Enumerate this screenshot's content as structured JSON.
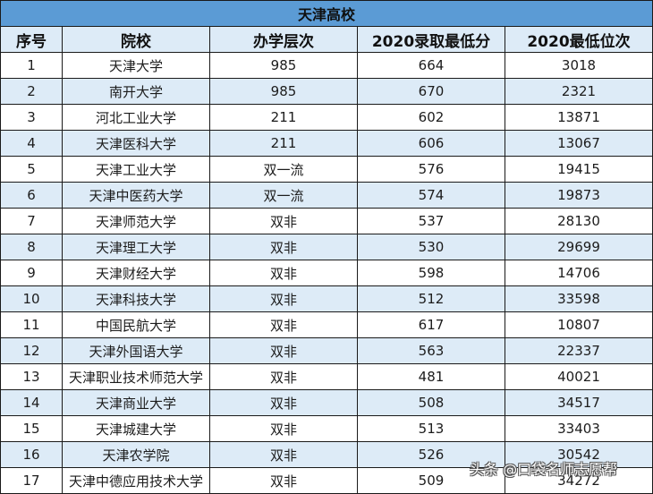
{
  "table": {
    "title": "天津高校",
    "headers": [
      "序号",
      "院校",
      "办学层次",
      "2020录取最低分",
      "2020最低位次"
    ],
    "rows": [
      {
        "no": "1",
        "school": "天津大学",
        "level": "985",
        "score": "664",
        "rank": "3018"
      },
      {
        "no": "2",
        "school": "南开大学",
        "level": "985",
        "score": "670",
        "rank": "2321"
      },
      {
        "no": "3",
        "school": "河北工业大学",
        "level": "211",
        "score": "602",
        "rank": "13871"
      },
      {
        "no": "4",
        "school": "天津医科大学",
        "level": "211",
        "score": "606",
        "rank": "13067"
      },
      {
        "no": "5",
        "school": "天津工业大学",
        "level": "双一流",
        "score": "576",
        "rank": "19415"
      },
      {
        "no": "6",
        "school": "天津中医药大学",
        "level": "双一流",
        "score": "574",
        "rank": "19873"
      },
      {
        "no": "7",
        "school": "天津师范大学",
        "level": "双非",
        "score": "537",
        "rank": "28130"
      },
      {
        "no": "8",
        "school": "天津理工大学",
        "level": "双非",
        "score": "530",
        "rank": "29699"
      },
      {
        "no": "9",
        "school": "天津财经大学",
        "level": "双非",
        "score": "598",
        "rank": "14706"
      },
      {
        "no": "10",
        "school": "天津科技大学",
        "level": "双非",
        "score": "512",
        "rank": "33598"
      },
      {
        "no": "11",
        "school": "中国民航大学",
        "level": "双非",
        "score": "617",
        "rank": "10807"
      },
      {
        "no": "12",
        "school": "天津外国语大学",
        "level": "双非",
        "score": "563",
        "rank": "22337"
      },
      {
        "no": "13",
        "school": "天津职业技术师范大学",
        "level": "双非",
        "score": "481",
        "rank": "40021"
      },
      {
        "no": "14",
        "school": "天津商业大学",
        "level": "双非",
        "score": "508",
        "rank": "34517"
      },
      {
        "no": "15",
        "school": "天津城建大学",
        "level": "双非",
        "score": "513",
        "rank": "33403"
      },
      {
        "no": "16",
        "school": "天津农学院",
        "level": "双非",
        "score": "526",
        "rank": "30542"
      },
      {
        "no": "17",
        "school": "天津中德应用技术大学",
        "level": "双非",
        "score": "509",
        "rank": "34272"
      }
    ]
  },
  "watermark": "头条 @口袋名师志愿帮",
  "colors": {
    "title_bg": "#5b9bd5",
    "header_bg": "#ddebf7",
    "stripe_bg": "#ddebf7",
    "row_bg": "#ffffff",
    "border": "#1a1a1a"
  }
}
